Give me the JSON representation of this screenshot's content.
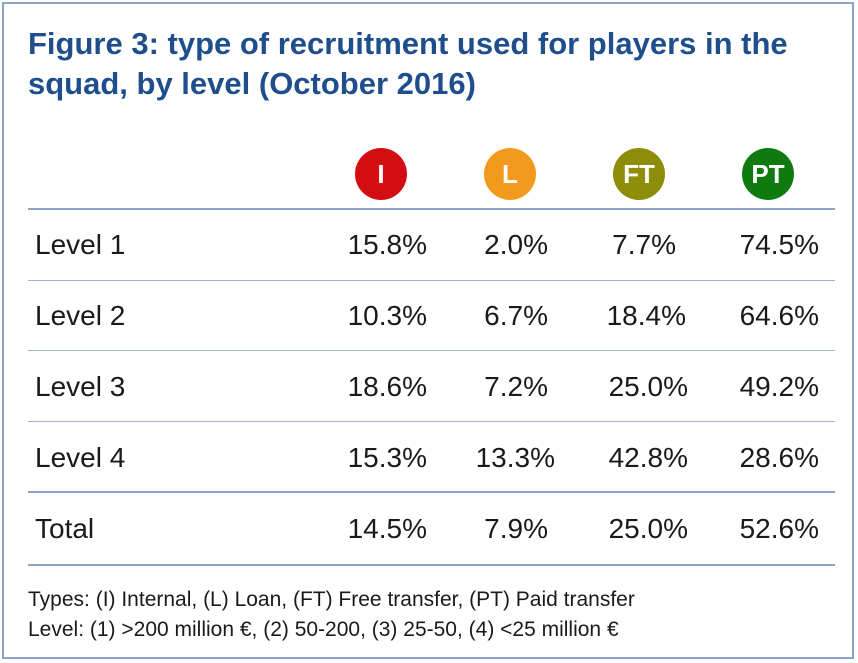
{
  "title": "Figure 3: type of recruitment used for players in the squad, by level (October 2016)",
  "colors": {
    "title": "#1f4e8c",
    "rule": "#8aa4c8",
    "I": "#d40d12",
    "L": "#f39a1e",
    "FT": "#8d8d0a",
    "PT": "#0f7a0f"
  },
  "chart_data": {
    "type": "table",
    "columns": [
      "I",
      "L",
      "FT",
      "PT"
    ],
    "rows": [
      {
        "label": "Level 1",
        "values": [
          "15.8%",
          "2.0%",
          "7.7%",
          "74.5%"
        ]
      },
      {
        "label": "Level 2",
        "values": [
          "10.3%",
          "6.7%",
          "18.4%",
          "64.6%"
        ]
      },
      {
        "label": "Level 3",
        "values": [
          "18.6%",
          "7.2%",
          "25.0%",
          "49.2%"
        ]
      },
      {
        "label": "Level 4",
        "values": [
          "15.3%",
          "13.3%",
          "42.8%",
          "28.6%"
        ]
      },
      {
        "label": "Total",
        "values": [
          "14.5%",
          "7.9%",
          "25.0%",
          "52.6%"
        ]
      }
    ]
  },
  "notes": {
    "types": "Types: (I) Internal, (L) Loan, (FT) Free transfer, (PT) Paid transfer",
    "levels": "Level: (1) >200 million €, (2) 50-200, (3) 25-50, (4) <25 million €"
  }
}
